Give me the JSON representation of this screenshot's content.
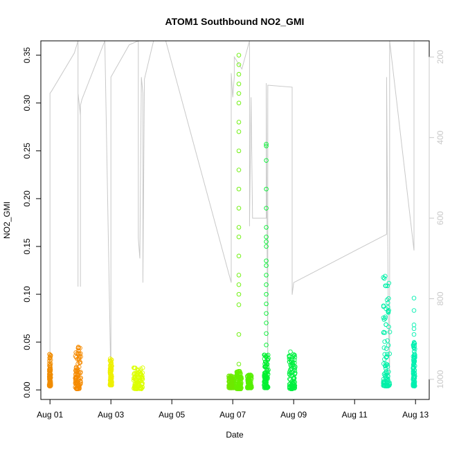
{
  "chart_data": {
    "type": "scatter",
    "title": "ATOM1 Southbound NO2_GMI",
    "xlabel": "Date",
    "ylabel": "NO2_GMI",
    "xlim": [
      -0.3,
      12.45
    ],
    "ylim": [
      -0.01,
      0.365
    ],
    "x_tick_labels": [
      {
        "x": 0,
        "label": "Aug 01"
      },
      {
        "x": 2,
        "label": "Aug 03"
      },
      {
        "x": 4,
        "label": "Aug 05"
      },
      {
        "x": 6,
        "label": "Aug 07"
      },
      {
        "x": 8,
        "label": "Aug 09"
      },
      {
        "x": 10,
        "label": "Aug 11"
      },
      {
        "x": 12,
        "label": "Aug 13"
      }
    ],
    "y_ticks": [
      0.0,
      0.05,
      0.1,
      0.15,
      0.2,
      0.25,
      0.3,
      0.35
    ],
    "y_tick_labels": [
      "0.00",
      "0.05",
      "0.10",
      "0.15",
      "0.20",
      "0.25",
      "0.30",
      "0.35"
    ],
    "y2_tick_labels": [
      "200",
      "400",
      "600",
      "800",
      "1000"
    ],
    "y2_ticks": [
      200,
      400,
      600,
      800,
      1000
    ],
    "y2lim": [
      1050,
      160
    ],
    "y2_color": "#c8c8c8",
    "grid": false,
    "marker": "open-circle",
    "clusters": [
      {
        "x": 0.0,
        "width": 0.05,
        "min": 0.004,
        "max": 0.04,
        "color": "#f08c00",
        "outliers": []
      },
      {
        "x": 0.92,
        "width": 0.18,
        "min": 0.001,
        "max": 0.047,
        "color": "#f58a00",
        "outliers": []
      },
      {
        "x": 2.0,
        "width": 0.06,
        "min": 0.005,
        "max": 0.033,
        "color": "#eef000",
        "outliers": []
      },
      {
        "x": 2.9,
        "width": 0.3,
        "min": 0.001,
        "max": 0.024,
        "color": "#dcff00",
        "outliers": []
      },
      {
        "x": 5.95,
        "width": 0.16,
        "min": 0.002,
        "max": 0.015,
        "color": "#6ee800",
        "outliers": []
      },
      {
        "x": 6.2,
        "width": 0.18,
        "min": 0.001,
        "max": 0.02,
        "color": "#66f000",
        "outliers": [
          0.027,
          0.058,
          0.089,
          0.1,
          0.11,
          0.12,
          0.14,
          0.16,
          0.17,
          0.19,
          0.21,
          0.23,
          0.25,
          0.27,
          0.28,
          0.3,
          0.31,
          0.32,
          0.33,
          0.34,
          0.35
        ]
      },
      {
        "x": 6.55,
        "width": 0.14,
        "min": 0.002,
        "max": 0.016,
        "color": "#55f000",
        "outliers": []
      },
      {
        "x": 7.1,
        "width": 0.14,
        "min": 0.002,
        "max": 0.037,
        "color": "#00f030",
        "outliers": [
          0.047,
          0.059,
          0.07,
          0.08,
          0.09,
          0.1,
          0.11,
          0.12,
          0.13,
          0.135,
          0.15,
          0.155,
          0.16,
          0.17,
          0.19,
          0.21,
          0.24,
          0.255,
          0.257
        ]
      },
      {
        "x": 7.95,
        "width": 0.2,
        "min": 0.001,
        "max": 0.04,
        "color": "#00f040",
        "outliers": []
      },
      {
        "x": 11.05,
        "width": 0.22,
        "min": 0.004,
        "max": 0.12,
        "color": "#00f0a8",
        "outliers": []
      },
      {
        "x": 11.95,
        "width": 0.06,
        "min": 0.004,
        "max": 0.05,
        "color": "#00f0b0",
        "outliers": [
          0.058,
          0.064,
          0.068,
          0.083,
          0.096
        ]
      }
    ],
    "altitude_line": {
      "color": "#c8c8c8",
      "segments": [
        [
          0.0,
          1010
        ],
        [
          0.0,
          760
        ],
        [
          0.0,
          290
        ],
        [
          0.05,
          285
        ],
        [
          0.8,
          190
        ],
        [
          0.92,
          140
        ],
        [
          0.92,
          770
        ],
        [
          0.92,
          290
        ],
        [
          0.95,
          310
        ],
        [
          1.0,
          345
        ],
        [
          1.0,
          770
        ],
        [
          1.0,
          320
        ],
        [
          1.05,
          305
        ],
        [
          1.8,
          140
        ],
        [
          2.0,
          1010
        ],
        [
          2.0,
          800
        ],
        [
          2.0,
          250
        ],
        [
          2.6,
          170
        ],
        [
          2.9,
          140
        ],
        [
          2.9,
          650
        ],
        [
          2.95,
          700
        ],
        [
          3.0,
          250
        ],
        [
          3.05,
          290
        ],
        [
          3.05,
          760
        ],
        [
          3.1,
          255
        ],
        [
          3.4,
          160
        ],
        [
          3.8,
          140
        ],
        [
          5.95,
          760
        ],
        [
          5.95,
          240
        ],
        [
          6.0,
          300
        ],
        [
          6.05,
          250
        ],
        [
          6.05,
          200
        ],
        [
          6.3,
          230
        ],
        [
          6.55,
          140
        ],
        [
          6.55,
          620
        ],
        [
          6.6,
          300
        ],
        [
          6.65,
          600
        ],
        [
          7.1,
          600
        ],
        [
          7.1,
          265
        ],
        [
          7.15,
          1010
        ],
        [
          7.15,
          270
        ],
        [
          7.95,
          275
        ],
        [
          7.95,
          790
        ],
        [
          8.0,
          760
        ],
        [
          11.05,
          640
        ],
        [
          11.05,
          250
        ],
        [
          11.1,
          790
        ],
        [
          11.15,
          1010
        ],
        [
          11.15,
          150
        ],
        [
          11.95,
          680
        ],
        [
          11.95,
          140
        ]
      ]
    }
  }
}
